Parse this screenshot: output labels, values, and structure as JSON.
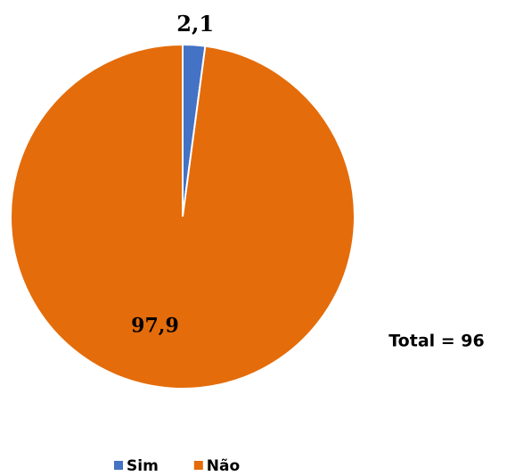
{
  "chart_data": {
    "type": "pie",
    "categories": [
      "Sim",
      "Não"
    ],
    "values": [
      2.1,
      97.9
    ],
    "value_labels": [
      "2,1",
      "97,9"
    ],
    "colors": [
      "#4472c4",
      "#e46c0a"
    ],
    "annotation": "Total = 96",
    "legend": "bottom"
  }
}
